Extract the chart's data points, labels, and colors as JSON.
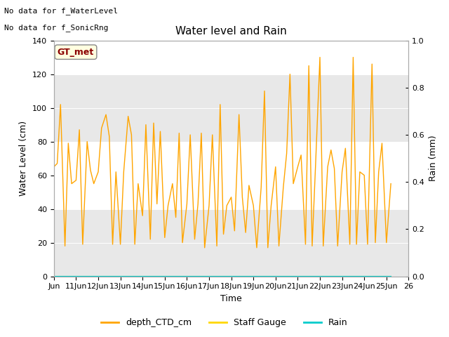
{
  "title": "Water level and Rain",
  "xlabel": "Time",
  "ylabel_left": "Water Level (cm)",
  "ylabel_right": "Rain (mm)",
  "top_text_line1": "No data for f_WaterLevel",
  "top_text_line2": "No data for f_SonicRng",
  "legend_label": "GT_met",
  "ylim_left": [
    0,
    140
  ],
  "ylim_right": [
    0.0,
    1.0
  ],
  "yticks_left": [
    0,
    20,
    40,
    60,
    80,
    100,
    120,
    140
  ],
  "yticks_right": [
    0.0,
    0.2,
    0.4,
    0.6,
    0.8,
    1.0
  ],
  "xtick_labels": [
    "Jun",
    "11Jun",
    "12Jun",
    "13Jun",
    "14Jun",
    "15Jun",
    "16Jun",
    "17Jun",
    "18Jun",
    "19Jun",
    "20Jun",
    "21Jun",
    "22Jun",
    "23Jun",
    "24Jun",
    "25Jun",
    "26"
  ],
  "bg_band1": [
    80,
    120
  ],
  "bg_band2": [
    0,
    40
  ],
  "bg_color": "#e8e8e8",
  "line_color_ctd": "#FFA500",
  "line_color_staff": "#FFD700",
  "line_color_rain": "#00CCCC",
  "legend_entries": [
    "depth_CTD_cm",
    "Staff Gauge",
    "Rain"
  ],
  "legend_colors": [
    "#FFA500",
    "#FFD700",
    "#00CCCC"
  ],
  "depth_CTD_x": [
    10.0,
    10.15,
    10.3,
    10.5,
    10.65,
    10.8,
    11.0,
    11.15,
    11.3,
    11.5,
    11.65,
    11.8,
    12.0,
    12.15,
    12.35,
    12.5,
    12.65,
    12.8,
    13.0,
    13.15,
    13.35,
    13.5,
    13.65,
    13.8,
    14.0,
    14.15,
    14.35,
    14.5,
    14.65,
    14.8,
    15.0,
    15.15,
    15.35,
    15.5,
    15.65,
    15.8,
    16.0,
    16.15,
    16.35,
    16.5,
    16.65,
    16.8,
    17.0,
    17.15,
    17.35,
    17.5,
    17.65,
    17.8,
    18.0,
    18.15,
    18.35,
    18.5,
    18.65,
    18.8,
    19.0,
    19.15,
    19.35,
    19.5,
    19.65,
    19.8,
    20.0,
    20.15,
    20.35,
    20.5,
    20.65,
    20.8,
    21.0,
    21.15,
    21.35,
    21.5,
    21.65,
    21.8,
    22.0,
    22.15,
    22.35,
    22.5,
    22.65,
    22.8,
    23.0,
    23.15,
    23.35,
    23.5,
    23.65,
    23.8,
    24.0,
    24.15,
    24.35,
    24.5,
    24.65,
    24.8,
    25.0,
    25.2
  ],
  "depth_CTD_y": [
    65,
    67,
    102,
    18,
    79,
    55,
    57,
    87,
    19,
    80,
    63,
    55,
    62,
    88,
    96,
    83,
    19,
    62,
    19,
    62,
    95,
    84,
    19,
    55,
    36,
    90,
    22,
    91,
    43,
    86,
    23,
    42,
    55,
    35,
    85,
    20,
    43,
    84,
    22,
    43,
    85,
    17,
    42,
    84,
    18,
    102,
    25,
    42,
    47,
    27,
    96,
    47,
    26,
    54,
    42,
    17,
    53,
    110,
    17,
    42,
    65,
    18,
    53,
    73,
    120,
    55,
    65,
    72,
    19,
    125,
    18,
    65,
    130,
    18,
    65,
    75,
    64,
    18,
    62,
    76,
    19,
    130,
    19,
    62,
    60,
    19,
    126,
    20,
    62,
    79,
    20,
    55
  ]
}
